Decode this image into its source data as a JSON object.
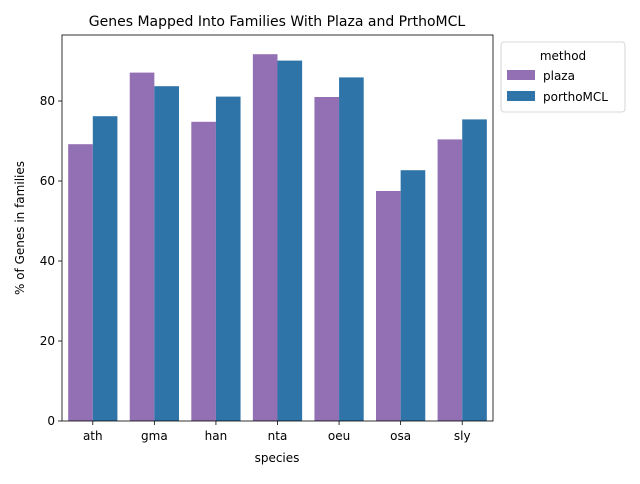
{
  "chart_data": {
    "type": "bar",
    "title": "Genes Mapped Into Families With Plaza and PrthoMCL",
    "xlabel": "species",
    "ylabel": "% of Genes in families",
    "categories": [
      "ath",
      "gma",
      "han",
      "nta",
      "oeu",
      "osa",
      "sly"
    ],
    "series": [
      {
        "name": "plaza",
        "color": "#9370b4",
        "values": [
          69.2,
          87.1,
          74.8,
          91.7,
          81.0,
          57.5,
          70.4
        ]
      },
      {
        "name": "porthoMCL",
        "color": "#2e74a8",
        "values": [
          76.2,
          83.7,
          81.1,
          90.1,
          85.9,
          62.7,
          75.4
        ]
      }
    ],
    "ylim": [
      0,
      96.5
    ],
    "yticks": [
      0,
      20,
      40,
      60,
      80
    ],
    "legend": {
      "title": "method",
      "placement": "outside top-right"
    },
    "grid": false
  }
}
